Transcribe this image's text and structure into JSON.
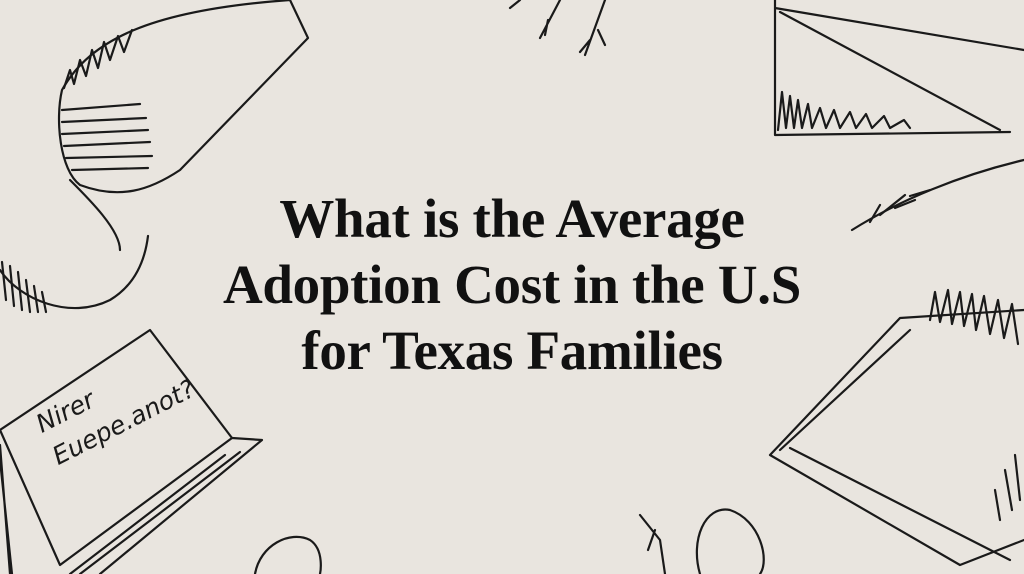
{
  "title": {
    "line1": "What is the Average",
    "line2": "Adoption Cost in the U.S",
    "line3": "for Texas Families"
  },
  "notebook_note": {
    "line1": "Nirer",
    "line2": "Euepe.anot?"
  }
}
